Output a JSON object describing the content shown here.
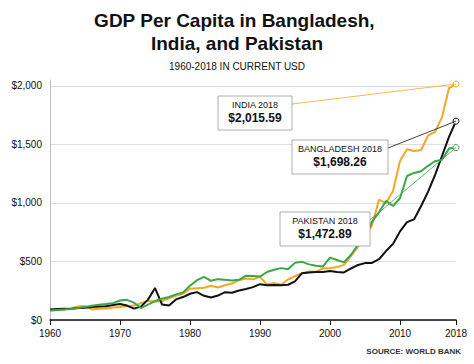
{
  "chart_data": {
    "type": "line",
    "title": "GDP Per Capita in Bangladesh, India, and Pakistan",
    "subtitle": "1960-2018 IN CURRENT USD",
    "source": "SOURCE: WORLD BANK",
    "x": [
      1960,
      1961,
      1962,
      1963,
      1964,
      1965,
      1966,
      1967,
      1968,
      1969,
      1970,
      1971,
      1972,
      1973,
      1974,
      1975,
      1976,
      1977,
      1978,
      1979,
      1980,
      1981,
      1982,
      1983,
      1984,
      1985,
      1986,
      1987,
      1988,
      1989,
      1990,
      1991,
      1992,
      1993,
      1994,
      1995,
      1996,
      1997,
      1998,
      1999,
      2000,
      2001,
      2002,
      2003,
      2004,
      2005,
      2006,
      2007,
      2008,
      2009,
      2010,
      2011,
      2012,
      2013,
      2014,
      2015,
      2016,
      2017,
      2018
    ],
    "series": [
      {
        "name": "India",
        "color": "#f5a623",
        "values": [
          82,
          85,
          90,
          101,
          116,
          119,
          90,
          96,
          99,
          107,
          112,
          119,
          123,
          144,
          163,
          158,
          161,
          186,
          206,
          224,
          267,
          271,
          275,
          292,
          277,
          297,
          311,
          340,
          355,
          347,
          368,
          303,
          316,
          301,
          346,
          374,
          400,
          415,
          413,
          442,
          443,
          452,
          471,
          546,
          627,
          714,
          807,
          1028,
          999,
          1102,
          1358,
          1458,
          1444,
          1450,
          1574,
          1606,
          1733,
          1981,
          2015.59
        ]
      },
      {
        "name": "Bangladesh",
        "color": "#111111",
        "values": [
          89,
          93,
          97,
          95,
          103,
          105,
          110,
          116,
          117,
          129,
          136,
          123,
          97,
          115,
          174,
          273,
          133,
          123,
          176,
          196,
          224,
          238,
          207,
          192,
          209,
          238,
          233,
          252,
          265,
          281,
          306,
          297,
          299,
          296,
          301,
          330,
          400,
          405,
          410,
          411,
          418,
          410,
          406,
          440,
          470,
          486,
          487,
          519,
          589,
          650,
          757,
          836,
          859,
          972,
          1094,
          1237,
          1401,
          1564,
          1698.26
        ]
      },
      {
        "name": "Pakistan",
        "color": "#3aa645",
        "values": [
          82,
          86,
          90,
          93,
          102,
          112,
          121,
          130,
          136,
          144,
          167,
          172,
          148,
          102,
          132,
          162,
          181,
          197,
          219,
          236,
          292,
          340,
          369,
          335,
          349,
          343,
          338,
          343,
          379,
          375,
          371,
          410,
          429,
          443,
          433,
          488,
          497,
          475,
          464,
          458,
          533,
          513,
          492,
          557,
          643,
          704,
          840,
          920,
          1017,
          974,
          1040,
          1230,
          1256,
          1271,
          1317,
          1356,
          1368,
          1464,
          1472.89
        ]
      }
    ],
    "xlim": [
      1960,
      2018
    ],
    "xticks": [
      1960,
      1970,
      1980,
      1990,
      2000,
      2010,
      2018
    ],
    "ylim": [
      0,
      2050
    ],
    "yticks": [
      {
        "value": 0,
        "label": "$0"
      },
      {
        "value": 500,
        "label": "$500"
      },
      {
        "value": 1000,
        "label": "$1,000"
      },
      {
        "value": 1500,
        "label": "$1,500"
      },
      {
        "value": 2000,
        "label": "$2,000"
      }
    ],
    "grid": true,
    "annotations": [
      {
        "series": "India",
        "text": "INDIA 2018",
        "value_label": "$2,015.59"
      },
      {
        "series": "Bangladesh",
        "text": "BANGLADESH 2018",
        "value_label": "$1,698.26"
      },
      {
        "series": "Pakistan",
        "text": "PAKISTAN 2018",
        "value_label": "$1,472.89"
      }
    ]
  }
}
